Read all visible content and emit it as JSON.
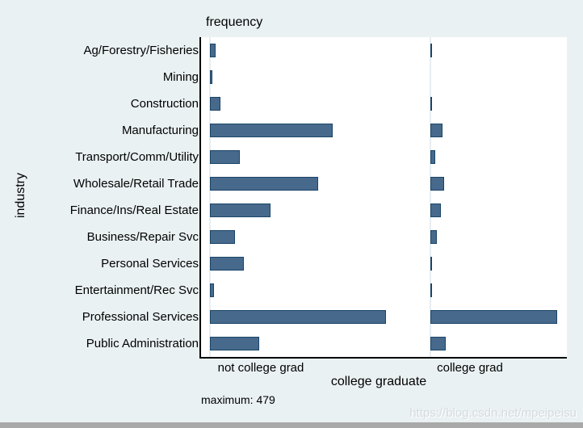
{
  "page": {
    "background": "#eaf1f3",
    "watermark": "https://blog.csdn.net/mpeipeisu",
    "watermark_color": "#d6dbde",
    "bottom_strip_color": "#a9a9a9"
  },
  "chart_data": {
    "type": "bar",
    "orientation": "horizontal",
    "title": "frequency",
    "ylabel": "industry",
    "xlabel": "college graduate",
    "note": "maximum: 479",
    "categories": [
      "Ag/Forestry/Fisheries",
      "Mining",
      "Construction",
      "Manufacturing",
      "Transport/Comm/Utility",
      "Wholesale/Retail Trade",
      "Finance/Ins/Real Estate",
      "Business/Repair Svc",
      "Personal Services",
      "Entertainment/Rec Svc",
      "Professional Services",
      "Public Administration"
    ],
    "series": [
      {
        "name": "not college grad",
        "values": [
          16,
          7,
          29,
          334,
          81,
          294,
          165,
          68,
          93,
          12,
          479,
          134
        ]
      },
      {
        "name": "college grad",
        "values": [
          4,
          0,
          4,
          33,
          13,
          38,
          29,
          18,
          3,
          5,
          345,
          42
        ]
      }
    ],
    "max_value": 479,
    "layout": {
      "grid": false,
      "legend": "none",
      "panel_zero_lines": true
    },
    "colors": {
      "bar_fill": "#46698c",
      "bar_border": "#1b4567",
      "zero_line": "#e6eef2",
      "axis_line": "#000000",
      "plot_background": "#ffffff"
    }
  }
}
